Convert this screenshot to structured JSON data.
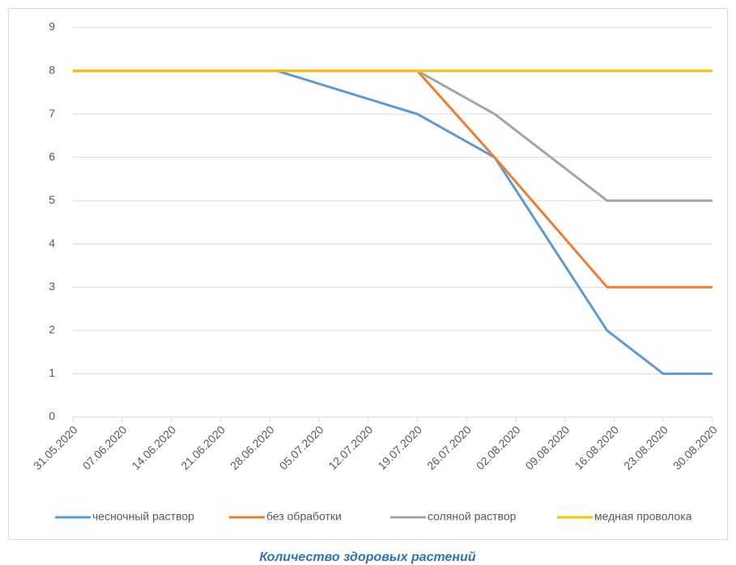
{
  "chart_data": {
    "type": "line",
    "title": "Количество здоровых растений",
    "x": [
      "31.05.2020",
      "29.06.2020",
      "19.07.2020",
      "30.07.2020",
      "15.08.2020",
      "23.08.2020",
      "30.08.2020"
    ],
    "series": [
      {
        "name": "чесночный раствор",
        "color": "#5b9bd5",
        "values": [
          8,
          8,
          7,
          6,
          2,
          1,
          1
        ]
      },
      {
        "name": "без обработки",
        "color": "#ed7d31",
        "values": [
          8,
          8,
          8,
          6,
          3,
          3,
          3
        ]
      },
      {
        "name": "соляной раствор",
        "color": "#a5a5a5",
        "values": [
          8,
          8,
          8,
          7,
          5,
          5,
          5
        ]
      },
      {
        "name": "медная проволока",
        "color": "#ffc000",
        "values": [
          8,
          8,
          8,
          8,
          8,
          8,
          8
        ]
      }
    ],
    "xlim": [
      "31.05.2020",
      "30.08.2020"
    ],
    "xticks": [
      "31.05.2020",
      "07.06.2020",
      "14.06.2020",
      "21.06.2020",
      "28.06.2020",
      "05.07.2020",
      "12.07.2020",
      "19.07.2020",
      "26.07.2020",
      "02.08.2020",
      "09.08.2020",
      "16.08.2020",
      "23.08.2020",
      "30.08.2020"
    ],
    "ylim": [
      0,
      9
    ],
    "yticks": [
      0,
      1,
      2,
      3,
      4,
      5,
      6,
      7,
      8,
      9
    ],
    "grid": true,
    "legend": "bottom"
  }
}
